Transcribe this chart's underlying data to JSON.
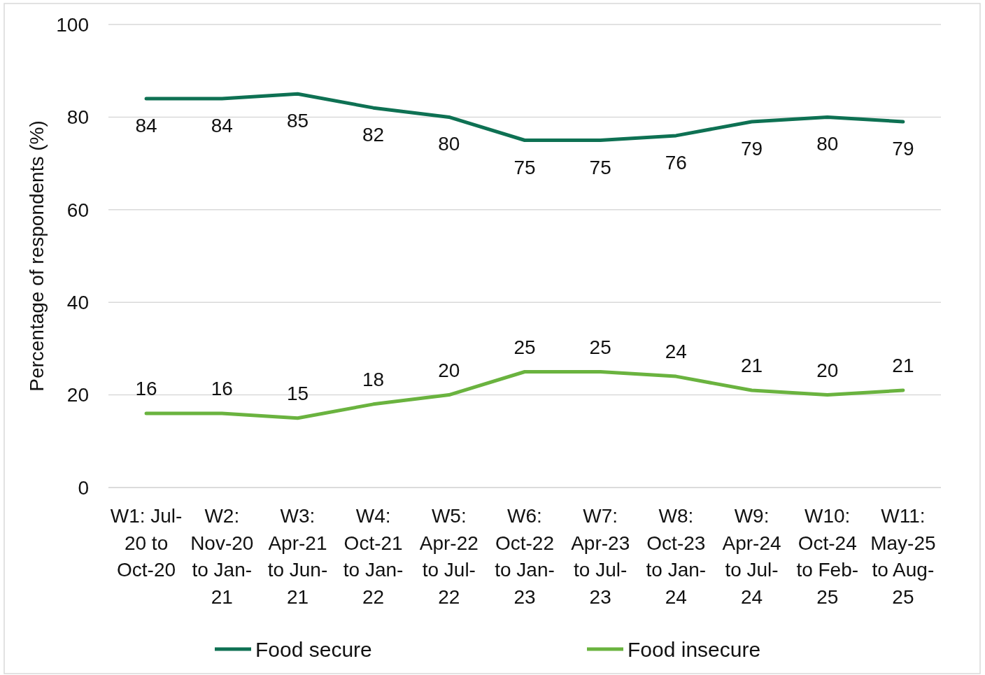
{
  "chart_data": {
    "type": "line",
    "ylabel": "Percentage of respondents (%)",
    "categories": [
      "W1: Jul-20 to Oct-20",
      "W2: Nov-20 to Jan-21",
      "W3: Apr-21 to Jun-21",
      "W4: Oct-21 to Jan-22",
      "W5: Apr-22 to Jul-22",
      "W6: Oct-22 to Jan-23",
      "W7: Apr-23 to Jul-23",
      "W8: Oct-23 to Jan-24",
      "W9: Apr-24 to Jul-24",
      "W10: Oct-24 to Feb-25",
      "W11: May-25 to Aug-25"
    ],
    "series": [
      {
        "name": "Food secure",
        "color": "#0e7153",
        "values": [
          84,
          84,
          85,
          82,
          80,
          75,
          75,
          76,
          79,
          80,
          79
        ]
      },
      {
        "name": "Food insecure",
        "color": "#6ab33f",
        "values": [
          16,
          16,
          15,
          18,
          20,
          25,
          25,
          24,
          21,
          20,
          21
        ]
      }
    ],
    "ylim": [
      0,
      100
    ],
    "yticks": [
      0,
      20,
      40,
      60,
      80,
      100
    ],
    "grid": "y",
    "legend": "bottom",
    "data_labels": true,
    "marker": "none",
    "line_style": "solid"
  }
}
